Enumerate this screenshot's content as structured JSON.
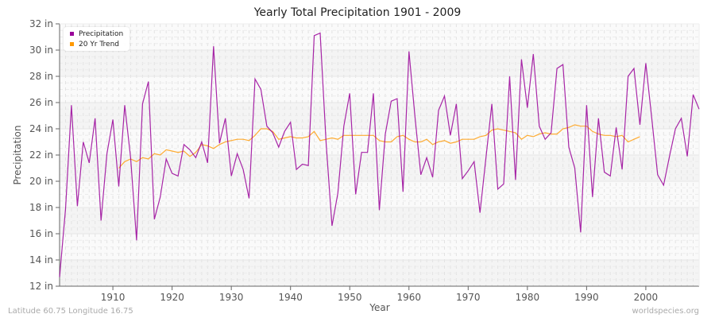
{
  "title": "Yearly Total Precipitation 1901 - 2009",
  "footer": {
    "location": "Latitude 60.75 Longitude 16.75",
    "source": "worldspecies.org"
  },
  "legend": {
    "items": [
      {
        "label": "Precipitation",
        "color": "#990099"
      },
      {
        "label": "20 Yr Trend",
        "color": "#ff9900"
      }
    ]
  },
  "axes": {
    "xlabel": "Year",
    "ylabel": "Precipitation",
    "yticks": [
      "12 in",
      "14 in",
      "16 in",
      "18 in",
      "20 in",
      "22 in",
      "24 in",
      "26 in",
      "28 in",
      "30 in",
      "32 in"
    ],
    "xticks": [
      "1910",
      "1920",
      "1930",
      "1940",
      "1950",
      "1960",
      "1970",
      "1980",
      "1990",
      "2000"
    ]
  },
  "chart_data": {
    "type": "line",
    "title": "Yearly Total Precipitation 1901 - 2009",
    "xlabel": "Year",
    "ylabel": "Precipitation",
    "ylim": [
      12,
      32
    ],
    "xlim": [
      1901,
      2009
    ],
    "y_unit": "in",
    "grid": true,
    "legend_position": "top-left",
    "x_start": 1901,
    "series": [
      {
        "name": "Precipitation",
        "color": "#990099",
        "start_year": 1901,
        "values": [
          12.7,
          17.9,
          25.8,
          18.1,
          23.0,
          21.4,
          24.8,
          17.0,
          22.1,
          24.7,
          19.6,
          25.8,
          21.8,
          15.5,
          25.9,
          27.6,
          17.1,
          18.8,
          21.7,
          20.6,
          20.4,
          22.8,
          22.4,
          21.8,
          23.0,
          21.4,
          30.3,
          22.9,
          24.8,
          20.4,
          22.1,
          20.9,
          18.7,
          27.8,
          27.0,
          24.2,
          23.7,
          22.6,
          23.8,
          24.5,
          20.9,
          21.3,
          21.2,
          31.1,
          31.3,
          23.0,
          16.6,
          19.1,
          24.2,
          26.7,
          19.0,
          22.2,
          22.2,
          26.7,
          17.8,
          23.6,
          26.1,
          26.3,
          19.2,
          29.9,
          25.0,
          20.5,
          21.8,
          20.3,
          25.4,
          26.5,
          23.5,
          25.9,
          20.2,
          20.8,
          21.5,
          17.6,
          21.8,
          25.9,
          19.4,
          19.8,
          28.0,
          20.1,
          29.3,
          25.6,
          29.7,
          24.2,
          23.2,
          23.7,
          28.6,
          28.9,
          22.6,
          21.0,
          16.1,
          25.8,
          18.8,
          24.8,
          20.7,
          20.4,
          24.1,
          20.9,
          28.0,
          28.6,
          24.3,
          29.0,
          24.8,
          20.5,
          19.7,
          21.9,
          24.0,
          24.8,
          21.9,
          26.6,
          25.5
        ]
      },
      {
        "name": "20 Yr Trend",
        "color": "#ff9900",
        "start_year": 1911,
        "values": [
          21.0,
          21.5,
          21.7,
          21.5,
          21.8,
          21.7,
          22.1,
          22.0,
          22.4,
          22.3,
          22.2,
          22.3,
          21.9,
          22.2,
          22.8,
          22.7,
          22.5,
          22.8,
          23.0,
          23.1,
          23.2,
          23.2,
          23.1,
          23.5,
          24.0,
          24.0,
          23.8,
          23.2,
          23.3,
          23.4,
          23.3,
          23.3,
          23.4,
          23.8,
          23.1,
          23.2,
          23.3,
          23.2,
          23.5,
          23.5,
          23.5,
          23.5,
          23.5,
          23.5,
          23.1,
          23.0,
          23.0,
          23.4,
          23.5,
          23.2,
          23.0,
          23.0,
          23.2,
          22.8,
          23.0,
          23.1,
          22.9,
          23.0,
          23.2,
          23.2,
          23.2,
          23.4,
          23.5,
          23.9,
          24.0,
          23.9,
          23.8,
          23.7,
          23.2,
          23.5,
          23.4,
          23.6,
          23.7,
          23.6,
          23.6,
          24.0,
          24.1,
          24.3,
          24.2,
          24.2,
          23.8,
          23.6,
          23.5,
          23.5,
          23.4,
          23.5,
          23.0,
          23.2,
          23.4
        ]
      }
    ]
  }
}
